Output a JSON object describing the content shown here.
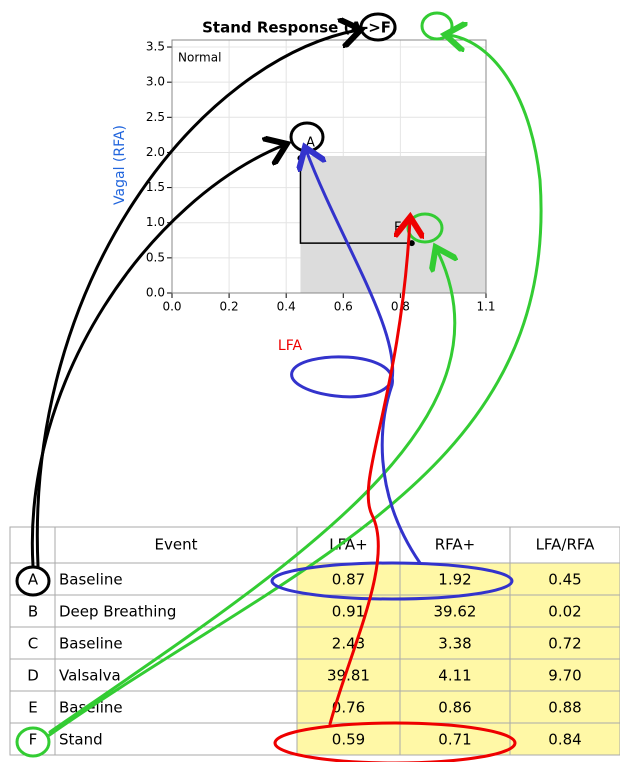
{
  "chart_data": {
    "type": "scatter",
    "title": "Stand Response (A->F)",
    "annotation": "Normal",
    "x_label": "LFA",
    "y_label": "Vagal (RFA)",
    "point_labels": [
      "A",
      "F"
    ],
    "x": [
      0.45,
      0.84
    ],
    "values": [
      1.92,
      0.71
    ],
    "shaded_region": {
      "x": [
        0.45,
        1.1
      ],
      "y": [
        0,
        1.95
      ]
    },
    "xlim": [
      0,
      1.1
    ],
    "ylim": [
      0,
      3.6
    ],
    "xticks": [
      {
        "value": 0,
        "label": "0.0"
      },
      {
        "value": 0.2,
        "label": "0.2"
      },
      {
        "value": 0.4,
        "label": "0.4"
      },
      {
        "value": 0.6,
        "label": "0.6"
      },
      {
        "value": 0.8,
        "label": "0.8"
      },
      {
        "value": 1.1,
        "label": "1.1"
      }
    ],
    "yticks": [
      {
        "value": 0,
        "label": "0.0"
      },
      {
        "value": 0.5,
        "label": "0.5"
      },
      {
        "value": 1,
        "label": "1.0"
      },
      {
        "value": 1.5,
        "label": "1.5"
      },
      {
        "value": 2,
        "label": "2.0"
      },
      {
        "value": 2.5,
        "label": "2.5"
      },
      {
        "value": 3,
        "label": "3.0"
      },
      {
        "value": 3.5,
        "label": "3.5"
      }
    ],
    "grid": true
  },
  "table": {
    "columns": [
      "Event",
      "LFA+",
      "RFA+",
      "LFA/RFA"
    ],
    "rows": [
      [
        "A",
        "Baseline",
        "0.87",
        "1.92",
        "0.45"
      ],
      [
        "B",
        "Deep Breathing",
        "0.91",
        "39.62",
        "0.02"
      ],
      [
        "C",
        "Baseline",
        "2.43",
        "3.38",
        "0.72"
      ],
      [
        "D",
        "Valsalva",
        "39.81",
        "4.11",
        "9.70"
      ],
      [
        "E",
        "Baseline",
        "0.76",
        "0.86",
        "0.88"
      ],
      [
        "F",
        "Stand",
        "0.59",
        "0.71",
        "0.84"
      ]
    ]
  }
}
